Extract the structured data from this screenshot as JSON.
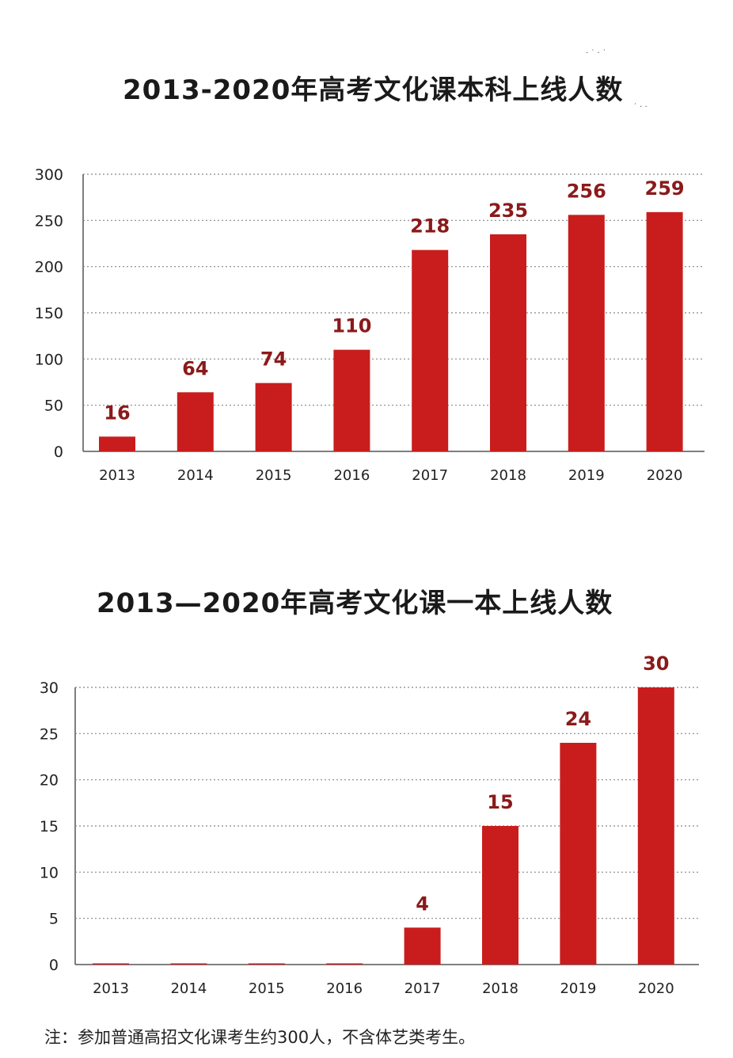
{
  "chart_data": [
    {
      "type": "bar",
      "title": "2013-2020年高考文化课本科上线人数",
      "categories": [
        "2013",
        "2014",
        "2015",
        "2016",
        "2017",
        "2018",
        "2019",
        "2020"
      ],
      "values": [
        16,
        64,
        74,
        110,
        218,
        235,
        256,
        259
      ],
      "data_labels": [
        "16",
        "64",
        "74",
        "110",
        "218",
        "235",
        "256",
        "259"
      ],
      "yticks": [
        "0",
        "50",
        "100",
        "150",
        "200",
        "250",
        "300"
      ],
      "ylim": [
        0,
        300
      ],
      "xlabel": "",
      "ylabel": "",
      "grid": true,
      "bar_color": "#c91d1d"
    },
    {
      "type": "bar",
      "title": "2013—2020年高考文化课一本上线人数",
      "categories": [
        "2013",
        "2014",
        "2015",
        "2016",
        "2017",
        "2018",
        "2019",
        "2020"
      ],
      "values": [
        0,
        0,
        0,
        0,
        4,
        15,
        24,
        30
      ],
      "data_labels": [
        "",
        "",
        "",
        "",
        "4",
        "15",
        "24",
        "30"
      ],
      "yticks": [
        "0",
        "5",
        "10",
        "15",
        "20",
        "25",
        "30"
      ],
      "ylim": [
        0,
        30
      ],
      "xlabel": "",
      "ylabel": "",
      "grid": true,
      "bar_color": "#c91d1d"
    }
  ],
  "footnote": "注：参加普通高招文化课考生约300人，不含体艺类考生。"
}
